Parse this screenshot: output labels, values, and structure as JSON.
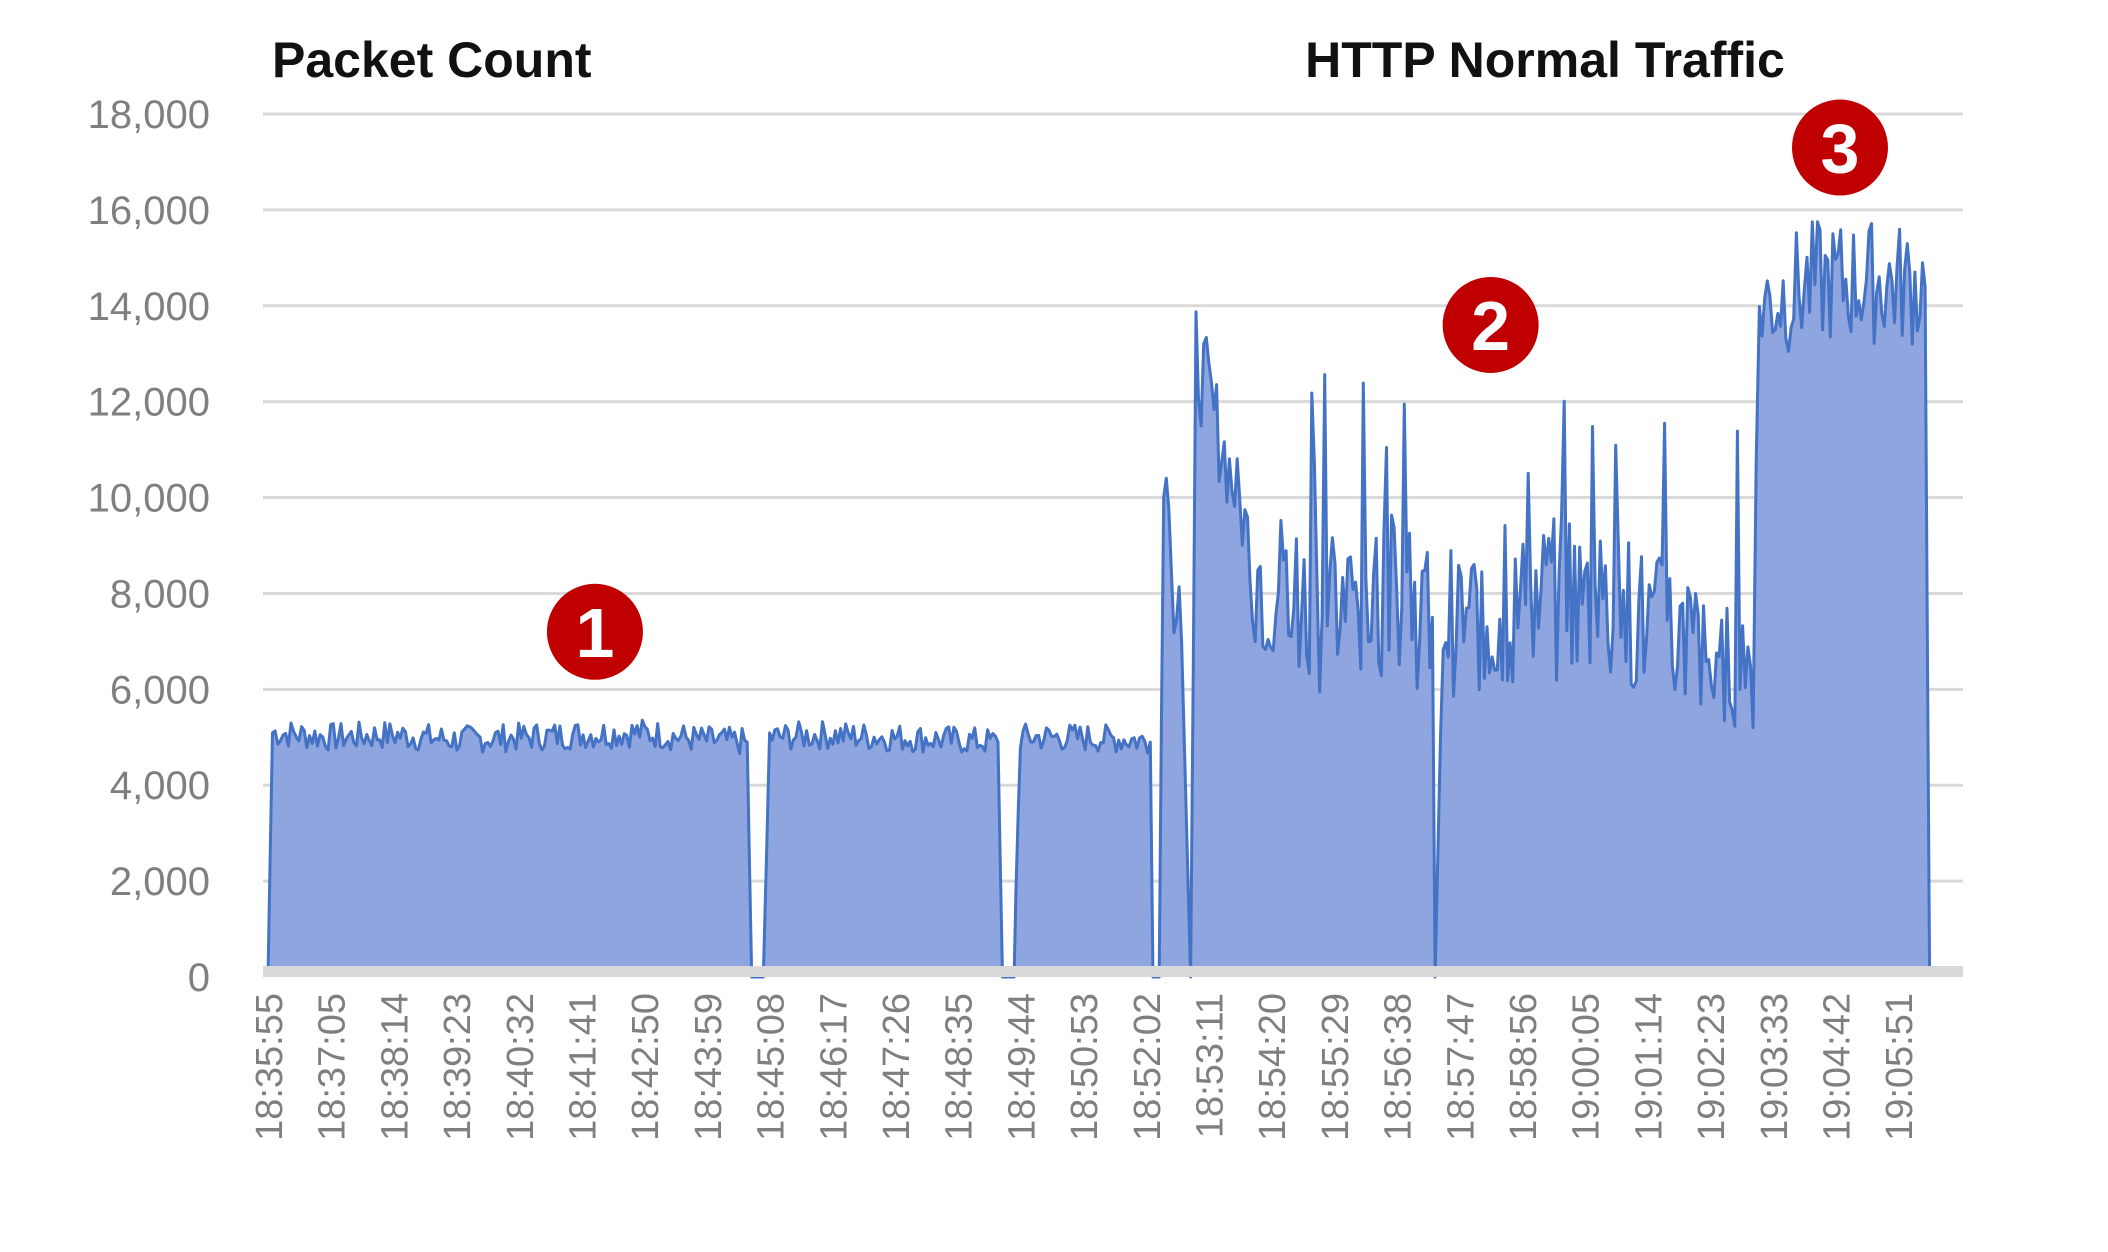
{
  "chart_data": {
    "type": "area",
    "title": "HTTP Normal Traffic",
    "ylabel": "Packet Count",
    "xlabel": "",
    "ylim": [
      0,
      18000
    ],
    "yticks": [
      0,
      2000,
      4000,
      6000,
      8000,
      10000,
      12000,
      14000,
      16000,
      18000
    ],
    "ytick_labels": [
      "0",
      "2,000",
      "4,000",
      "6,000",
      "8,000",
      "10,000",
      "12,000",
      "14,000",
      "16,000",
      "18,000"
    ],
    "x_tick_labels": [
      "18:35:55",
      "18:37:05",
      "18:38:14",
      "18:39:23",
      "18:40:32",
      "18:41:41",
      "18:42:50",
      "18:43:59",
      "18:45:08",
      "18:46:17",
      "18:47:26",
      "18:48:35",
      "18:49:44",
      "18:50:53",
      "18:52:02",
      "18:53:11",
      "18:54:20",
      "18:55:29",
      "18:56:38",
      "18:57:47",
      "18:58:56",
      "19:00:05",
      "19:01:14",
      "19:02:23",
      "19:03:33",
      "19:04:42",
      "19:05:51"
    ],
    "grid": true,
    "series": [
      {
        "points": [
          [
            "18:35:55",
            0
          ],
          [
            "18:36:00",
            5100
          ],
          [
            "18:37:05",
            5000
          ],
          [
            "18:38:14",
            5050
          ],
          [
            "18:39:23",
            4950
          ],
          [
            "18:40:32",
            5000
          ],
          [
            "18:41:41",
            5050
          ],
          [
            "18:42:50",
            5100
          ],
          [
            "18:43:59",
            4950
          ],
          [
            "18:44:50",
            4900
          ],
          [
            "18:44:55",
            0
          ],
          [
            "18:45:08",
            0
          ],
          [
            "18:45:15",
            5000
          ],
          [
            "18:46:17",
            5050
          ],
          [
            "18:47:26",
            5000
          ],
          [
            "18:48:35",
            4950
          ],
          [
            "18:49:30",
            4900
          ],
          [
            "18:49:35",
            0
          ],
          [
            "18:49:48",
            0
          ],
          [
            "18:49:50",
            1800
          ],
          [
            "18:49:55",
            5000
          ],
          [
            "18:50:53",
            5000
          ],
          [
            "18:52:02",
            4950
          ],
          [
            "18:52:20",
            4900
          ],
          [
            "18:52:23",
            0
          ],
          [
            "18:52:30",
            0
          ],
          [
            "18:52:35",
            11000
          ],
          [
            "18:52:55",
            7000
          ],
          [
            "18:53:05",
            0
          ],
          [
            "18:53:11",
            13000
          ],
          [
            "18:54:20",
            8500
          ],
          [
            "18:55:29",
            7500
          ],
          [
            "18:56:38",
            8000
          ],
          [
            "18:57:35",
            7500
          ],
          [
            "18:57:38",
            0
          ],
          [
            "18:57:47",
            7500
          ],
          [
            "18:58:56",
            7500
          ],
          [
            "19:00:05",
            8000
          ],
          [
            "19:01:14",
            7500
          ],
          [
            "19:02:23",
            7000
          ],
          [
            "19:03:33",
            6500
          ],
          [
            "19:03:40",
            14000
          ],
          [
            "19:04:42",
            14500
          ],
          [
            "19:05:51",
            14500
          ],
          [
            "19:06:45",
            14400
          ],
          [
            "19:06:50",
            0
          ]
        ]
      }
    ],
    "annotations": [
      {
        "label": "1",
        "x": "18:42:00",
        "y": 7200
      },
      {
        "label": "2",
        "x": "18:58:40",
        "y": 13600
      },
      {
        "label": "3",
        "x": "19:05:10",
        "y": 17300
      }
    ],
    "colors": {
      "area_fill": "#8EA5DF",
      "line": "#4472C4",
      "grid": "#D9D9D9",
      "axis": "#D9D9D9",
      "marker": "#C00000",
      "tick_text": "#7F7F7F",
      "title_text": "#111111"
    }
  }
}
